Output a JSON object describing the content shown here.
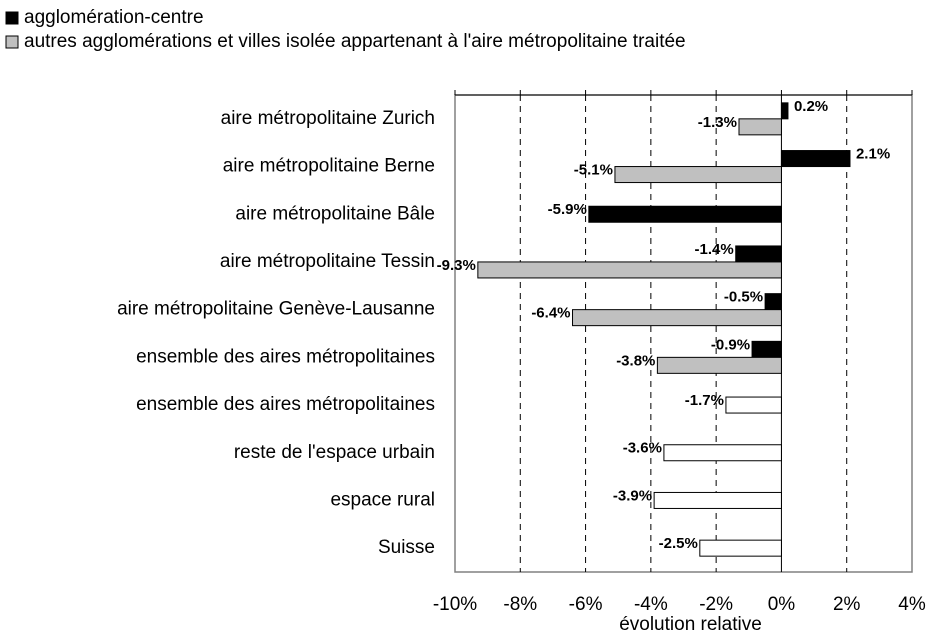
{
  "chart_data": {
    "type": "bar",
    "orientation": "horizontal",
    "categories": [
      "aire métropolitaine Zurich",
      "aire métropolitaine Berne",
      "aire métropolitaine Bâle",
      "aire métropolitaine Tessin",
      "aire métropolitaine Genève-Lausanne",
      "ensemble des aires métropolitaines",
      "ensemble des aires métropolitaines",
      "reste de l'espace urbain",
      "espace rural",
      "Suisse"
    ],
    "series": [
      {
        "name": "agglomération-centre",
        "color": "#000000",
        "values": [
          0.2,
          2.1,
          -5.9,
          -1.4,
          -0.5,
          -0.9,
          null,
          null,
          null,
          null
        ],
        "value_labels": [
          "0.2%",
          "2.1%",
          "-5.9%",
          "-1.4%",
          "-0.5%",
          "-0.9%",
          null,
          null,
          null,
          null
        ]
      },
      {
        "name": "autres agglomérations et villes isolée appartenant à l'aire métropolitaine traitée",
        "color": "#c0c0c0",
        "values": [
          -1.3,
          -5.1,
          null,
          -9.3,
          -6.4,
          -3.8,
          null,
          null,
          null,
          null
        ],
        "value_labels": [
          "-1.3%",
          "-5.1%",
          null,
          "-9.3%",
          "-6.4%",
          "-3.8%",
          null,
          null,
          null,
          null
        ]
      },
      {
        "color": "#ffffff",
        "values": [
          null,
          null,
          null,
          null,
          null,
          null,
          -1.7,
          -3.6,
          -3.9,
          -2.5
        ],
        "value_labels": [
          null,
          null,
          null,
          null,
          null,
          null,
          "-1.7%",
          "-3.6%",
          "-3.9%",
          "-2.5%"
        ]
      }
    ],
    "xlabel": "évolution relative",
    "xlim": [
      -10,
      4
    ],
    "xticks": [
      {
        "value": -10,
        "label": "-10%"
      },
      {
        "value": -8,
        "label": "-8%"
      },
      {
        "value": -6,
        "label": "-6%"
      },
      {
        "value": -4,
        "label": "-4%"
      },
      {
        "value": -2,
        "label": "-2%"
      },
      {
        "value": 0,
        "label": "0%"
      },
      {
        "value": 2,
        "label": "2%"
      },
      {
        "value": 4,
        "label": "4%"
      }
    ],
    "grid": true,
    "legend": "top-left"
  }
}
